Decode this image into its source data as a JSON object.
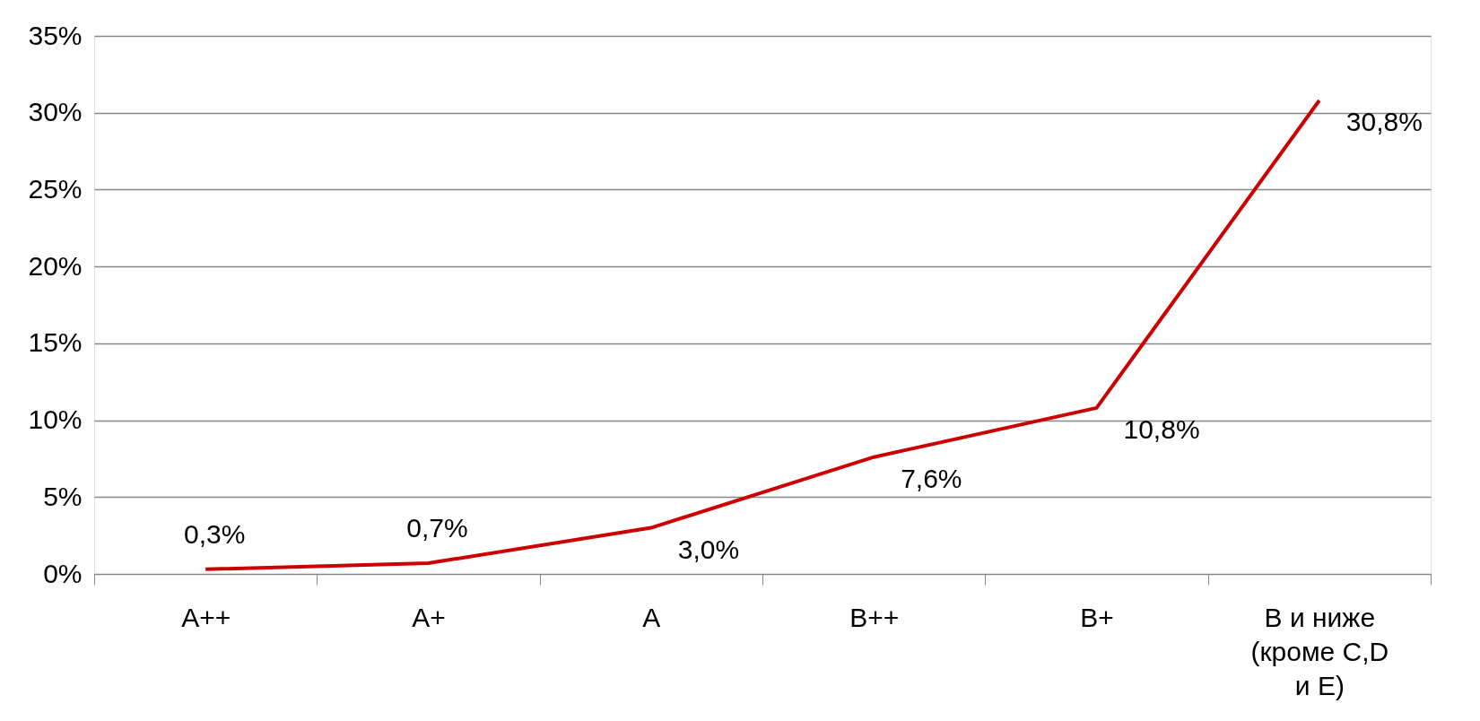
{
  "chart_data": {
    "type": "line",
    "categories": [
      "A++",
      "A+",
      "A",
      "B++",
      "B+",
      "B и ниже (кроме C,D и E)"
    ],
    "series": [
      {
        "color": "#cc0000",
        "values": [
          0.3,
          0.7,
          3.0,
          7.6,
          10.8,
          30.8
        ],
        "value_labels": [
          "0,3%",
          "0,7%",
          "3,0%",
          "7,6%",
          "10,8%",
          "30,8%"
        ]
      }
    ],
    "ylim": [
      0,
      35
    ],
    "yticks": [
      {
        "value": 0,
        "label": "0%"
      },
      {
        "value": 5,
        "label": "5%"
      },
      {
        "value": 10,
        "label": "10%"
      },
      {
        "value": 15,
        "label": "15%"
      },
      {
        "value": 20,
        "label": "20%"
      },
      {
        "value": 25,
        "label": "25%"
      },
      {
        "value": 30,
        "label": "30%"
      },
      {
        "value": 35,
        "label": "35%"
      }
    ],
    "grid": "y",
    "marker": "none",
    "line_style": "solid"
  }
}
